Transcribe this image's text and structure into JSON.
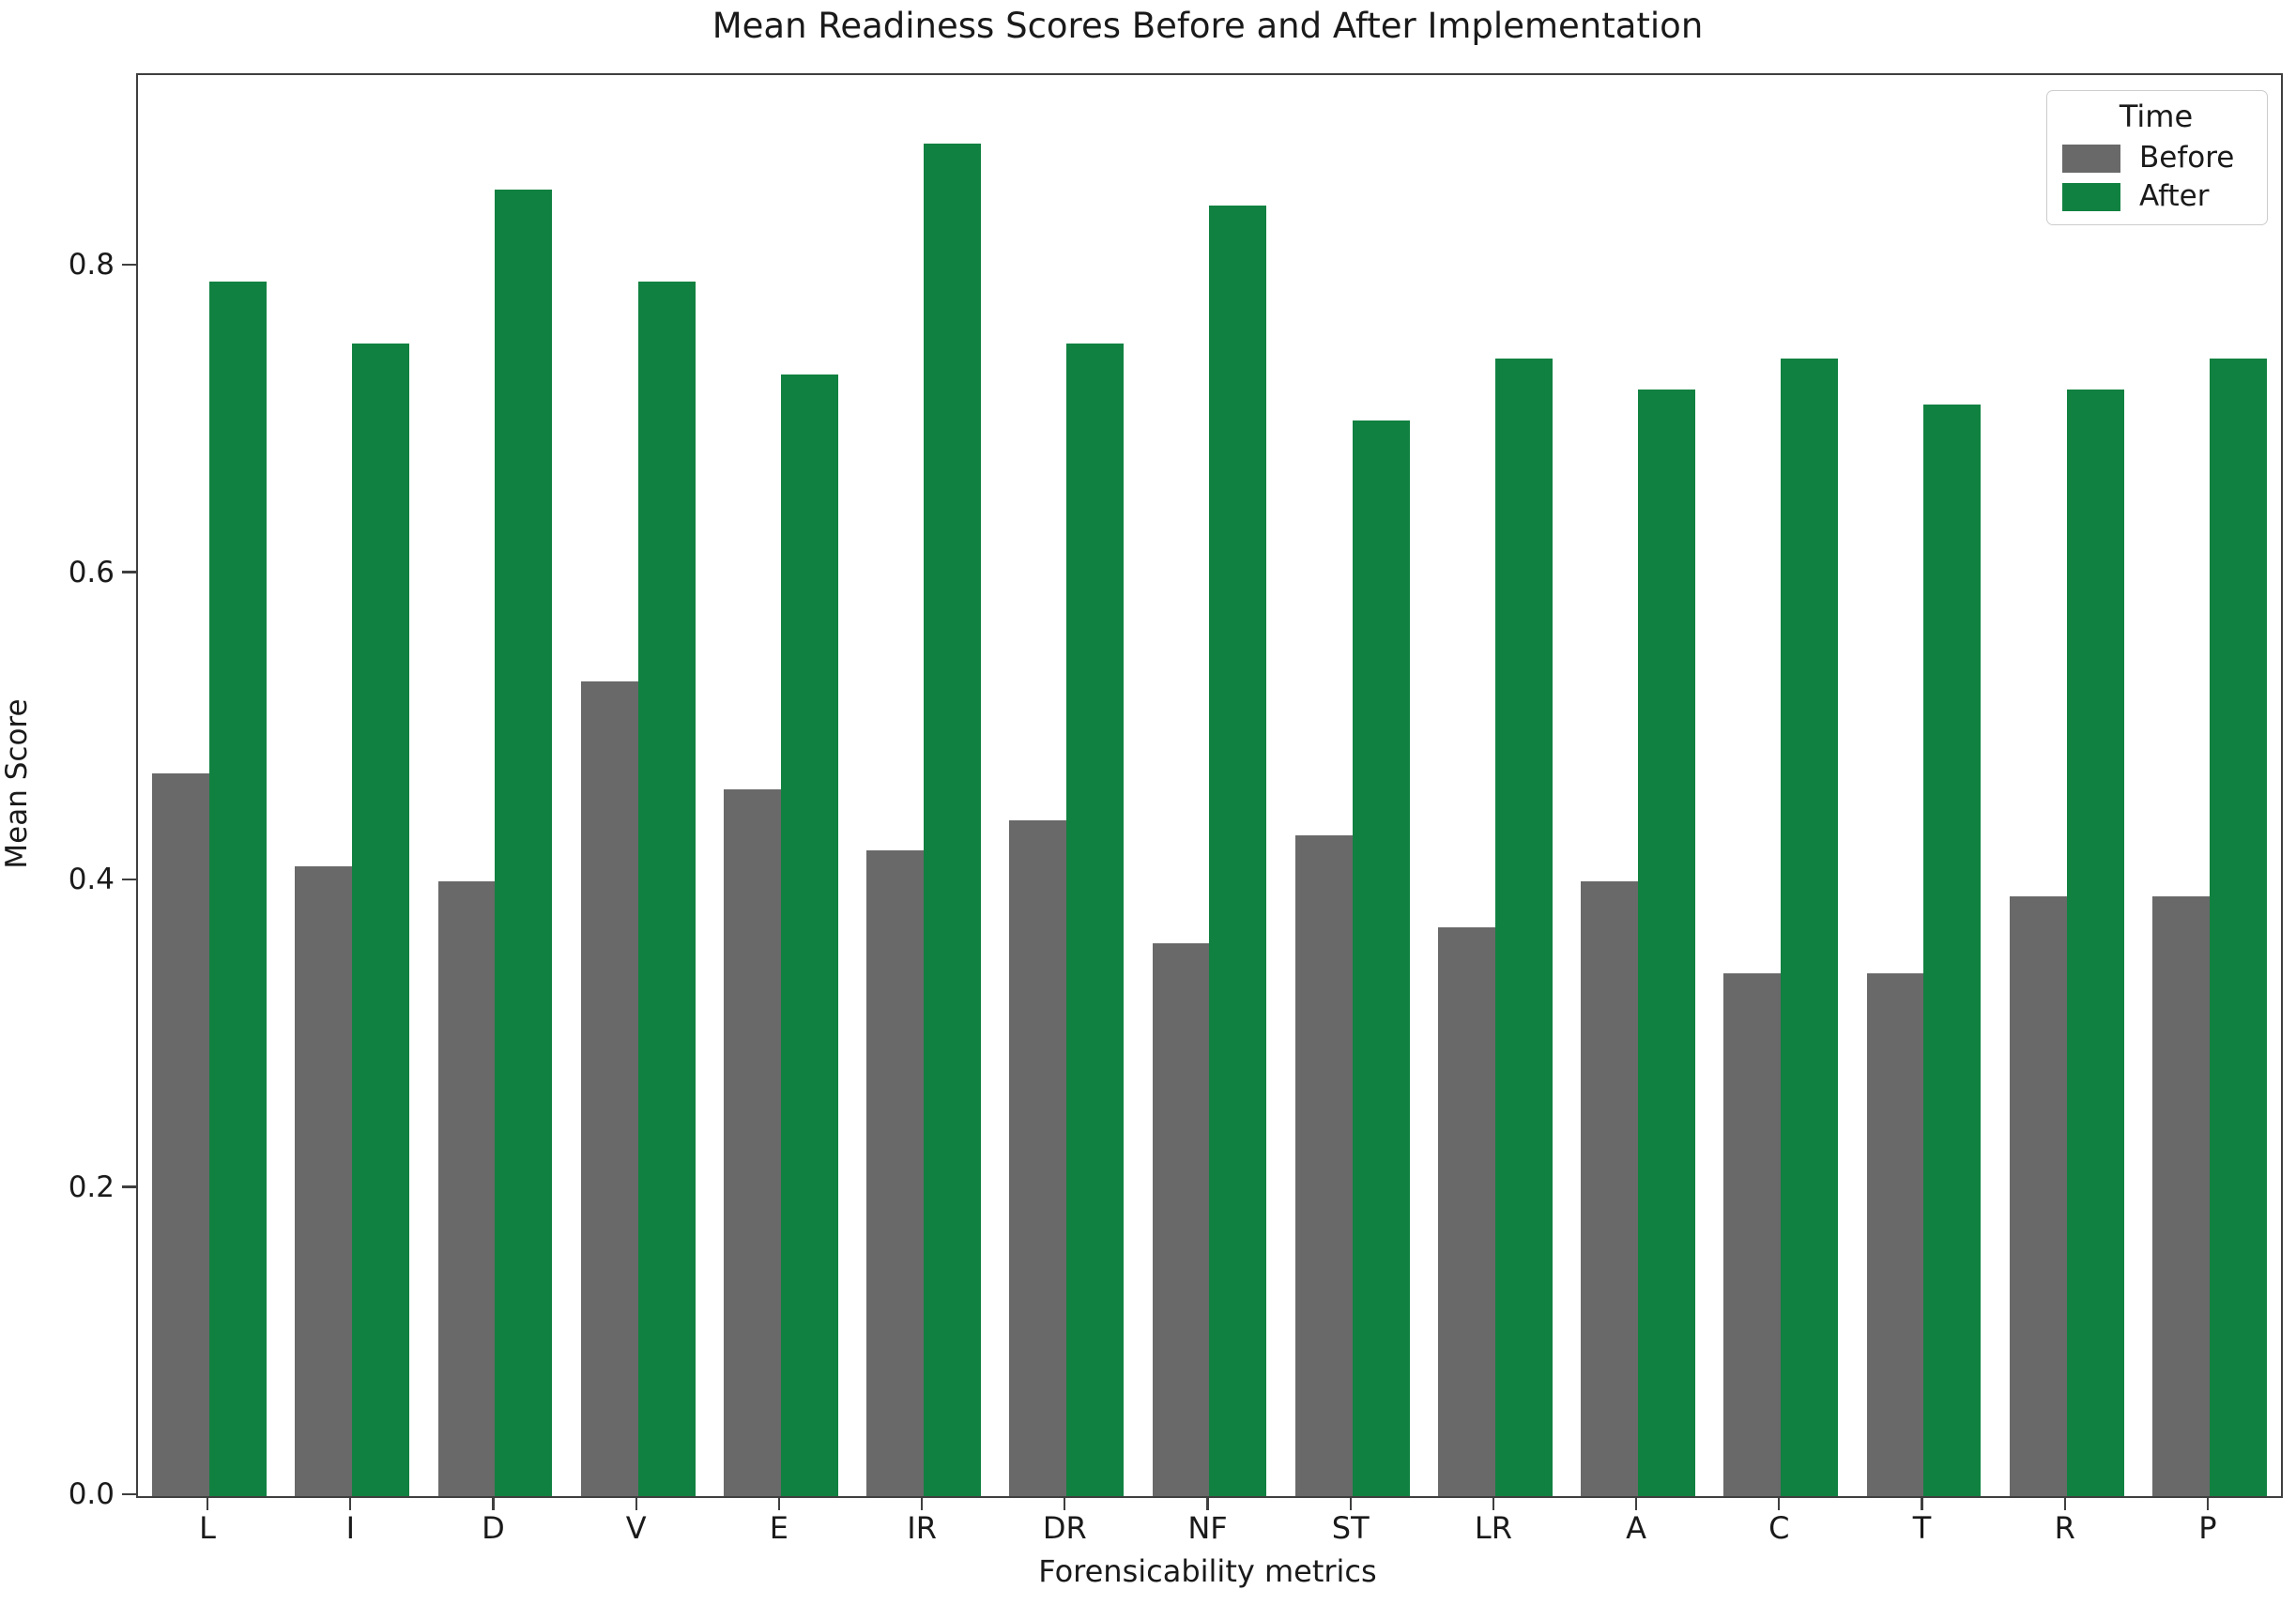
{
  "figure": {
    "title": "Mean Readiness Scores Before and After Implementation",
    "xlabel": "Forensicability metrics",
    "ylabel": "Mean Score",
    "legend_title": "Time"
  },
  "chart_data": {
    "type": "bar",
    "title": "Mean Readiness Scores Before and After Implementation",
    "xlabel": "Forensicability metrics",
    "ylabel": "Mean Score",
    "categories": [
      "L",
      "I",
      "D",
      "V",
      "E",
      "IR",
      "DR",
      "NF",
      "ST",
      "LR",
      "A",
      "C",
      "T",
      "R",
      "P"
    ],
    "series": [
      {
        "name": "Before",
        "color": "#696969",
        "values": [
          0.47,
          0.41,
          0.4,
          0.53,
          0.46,
          0.42,
          0.44,
          0.36,
          0.43,
          0.37,
          0.4,
          0.34,
          0.34,
          0.39,
          0.39
        ]
      },
      {
        "name": "After",
        "color": "#118141",
        "values": [
          0.79,
          0.75,
          0.85,
          0.79,
          0.73,
          0.88,
          0.75,
          0.84,
          0.7,
          0.74,
          0.72,
          0.74,
          0.71,
          0.72,
          0.74
        ]
      }
    ],
    "ylim": [
      0,
      0.9246
    ],
    "yticks": [
      "0.0",
      "0.2",
      "0.4",
      "0.6",
      "0.8"
    ],
    "grid": false,
    "legend": {
      "title": "Time",
      "position": "upper right",
      "entries": [
        "Before",
        "After"
      ]
    }
  },
  "style": {
    "spine_color": "#3f3f3f",
    "text_color": "#1a1a1a",
    "before_color": "#696969",
    "after_color": "#118141",
    "legend_border": "#cccccc",
    "background": "#ffffff"
  }
}
